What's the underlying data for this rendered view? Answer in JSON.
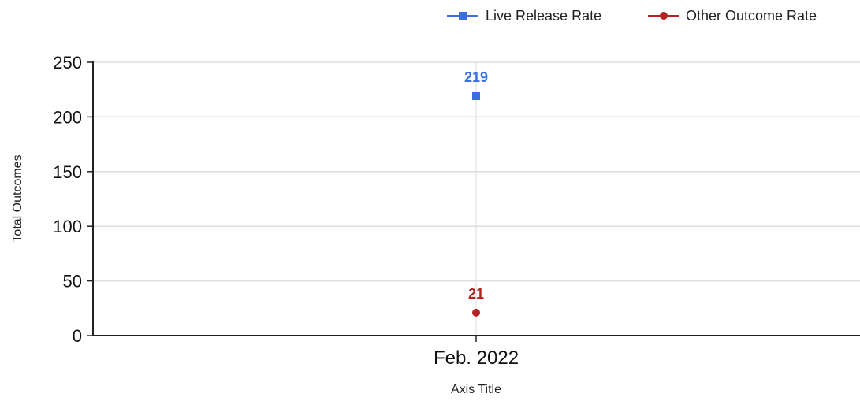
{
  "chart_data": {
    "type": "line",
    "categories": [
      "Feb. 2022"
    ],
    "series": [
      {
        "name": "Live Release Rate",
        "values": [
          219
        ],
        "color": "#3b6fe0",
        "marker": "square",
        "label": "219"
      },
      {
        "name": "Other Outcome Rate",
        "values": [
          21
        ],
        "color": "#b52222",
        "marker": "circle",
        "label": "21"
      }
    ],
    "xlabel": "Axis Title",
    "ylabel": "Total Outcomes",
    "ylim": [
      0,
      250
    ],
    "yticks": [
      "0",
      "50",
      "100",
      "150",
      "200",
      "250"
    ],
    "grid": true,
    "legend_position": "top-right"
  }
}
